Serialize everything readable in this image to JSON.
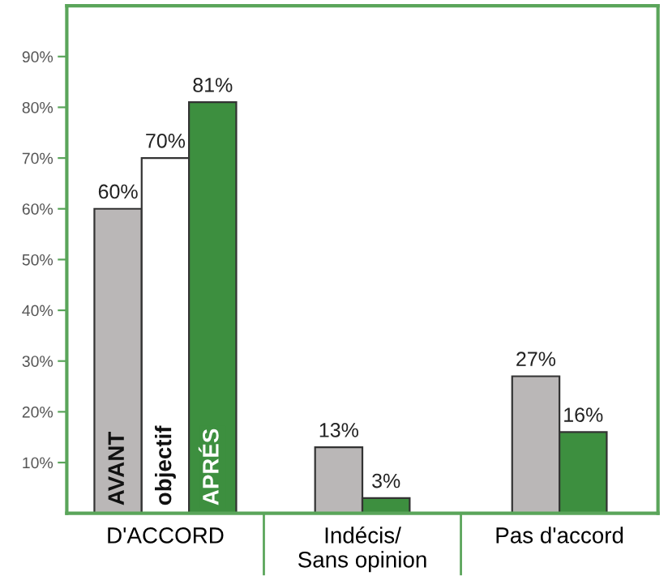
{
  "chart_data": {
    "type": "bar",
    "categories": [
      "D'ACCORD",
      "Indécis/\nSans opinion",
      "Pas d'accord"
    ],
    "series": [
      {
        "name": "AVANT",
        "color": "#bab7b7",
        "values": [
          60,
          13,
          27
        ],
        "value_labels": [
          "60%",
          "13%",
          "27%"
        ]
      },
      {
        "name": "objectif",
        "color": "#ffffff",
        "values": [
          70,
          null,
          null
        ],
        "value_labels": [
          "70%",
          null,
          null
        ]
      },
      {
        "name": "APRÉS",
        "color": "#3d8f3f",
        "values": [
          81,
          3,
          16
        ],
        "value_labels": [
          "81%",
          "3%",
          "16%"
        ]
      }
    ],
    "ylim": [
      0,
      100
    ],
    "yticks": [
      {
        "value": 10,
        "label": "10%"
      },
      {
        "value": 20,
        "label": "20%"
      },
      {
        "value": 30,
        "label": "30%"
      },
      {
        "value": 40,
        "label": "40%"
      },
      {
        "value": 50,
        "label": "50%"
      },
      {
        "value": 60,
        "label": "60%"
      },
      {
        "value": 70,
        "label": "70%"
      },
      {
        "value": 80,
        "label": "80%"
      },
      {
        "value": 90,
        "label": "90%"
      }
    ],
    "grid": false,
    "legend": false
  }
}
